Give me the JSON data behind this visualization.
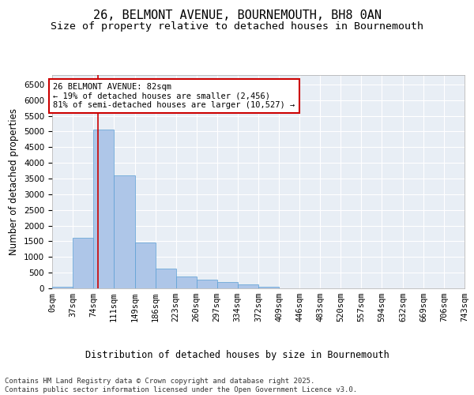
{
  "title_line1": "26, BELMONT AVENUE, BOURNEMOUTH, BH8 0AN",
  "title_line2": "Size of property relative to detached houses in Bournemouth",
  "xlabel": "Distribution of detached houses by size in Bournemouth",
  "ylabel": "Number of detached properties",
  "footer_line1": "Contains HM Land Registry data © Crown copyright and database right 2025.",
  "footer_line2": "Contains public sector information licensed under the Open Government Licence v3.0.",
  "bin_labels": [
    "0sqm",
    "37sqm",
    "74sqm",
    "111sqm",
    "149sqm",
    "186sqm",
    "223sqm",
    "260sqm",
    "297sqm",
    "334sqm",
    "372sqm",
    "409sqm",
    "446sqm",
    "483sqm",
    "520sqm",
    "557sqm",
    "594sqm",
    "632sqm",
    "669sqm",
    "706sqm",
    "743sqm"
  ],
  "bar_values": [
    60,
    1600,
    5050,
    3600,
    1450,
    620,
    370,
    280,
    200,
    130,
    50,
    0,
    0,
    0,
    0,
    0,
    0,
    0,
    0,
    0
  ],
  "bin_edges": [
    0,
    37,
    74,
    111,
    149,
    186,
    223,
    260,
    297,
    334,
    372,
    409,
    446,
    483,
    520,
    557,
    594,
    632,
    669,
    706,
    743
  ],
  "property_size": 82,
  "annotation_line1": "26 BELMONT AVENUE: 82sqm",
  "annotation_line2": "← 19% of detached houses are smaller (2,456)",
  "annotation_line3": "81% of semi-detached houses are larger (10,527) →",
  "bar_color": "#aec6e8",
  "bar_edge_color": "#5a9fd4",
  "vline_color": "#cc0000",
  "annotation_box_color": "#cc0000",
  "ylim": [
    0,
    6800
  ],
  "yticks": [
    0,
    500,
    1000,
    1500,
    2000,
    2500,
    3000,
    3500,
    4000,
    4500,
    5000,
    5500,
    6000,
    6500
  ],
  "background_color": "#e8eef5",
  "grid_color": "#ffffff",
  "title_fontsize": 11,
  "subtitle_fontsize": 9.5,
  "axis_label_fontsize": 8.5,
  "tick_fontsize": 7.5,
  "annotation_fontsize": 7.5,
  "footer_fontsize": 6.5
}
